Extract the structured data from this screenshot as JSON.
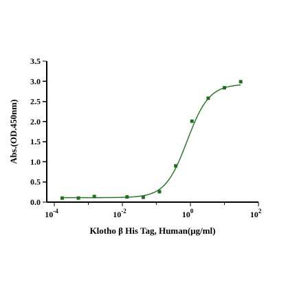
{
  "chart_data": {
    "type": "scatter",
    "title": "",
    "xlabel": "Klotho β His Tag, Human(μg/ml)",
    "ylabel": "Abs.(OD.450nm)",
    "xscale": "log",
    "xlim": [
      6e-05,
      100
    ],
    "ylim": [
      0,
      3.5
    ],
    "xticks": [
      {
        "value": 0.0001,
        "base": "10",
        "exp": "-4"
      },
      {
        "value": 0.01,
        "base": "10",
        "exp": "-2"
      },
      {
        "value": 1,
        "base": "10",
        "exp": "0"
      },
      {
        "value": 100,
        "base": "10",
        "exp": "2"
      }
    ],
    "yticks": [
      {
        "value": 0,
        "label": "0.0"
      },
      {
        "value": 0.5,
        "label": "0.5"
      },
      {
        "value": 1.0,
        "label": "1.0"
      },
      {
        "value": 1.5,
        "label": "1.5"
      },
      {
        "value": 2.0,
        "label": "2.0"
      },
      {
        "value": 2.5,
        "label": "2.5"
      },
      {
        "value": 3.0,
        "label": "3.0"
      },
      {
        "value": 3.5,
        "label": "3.5"
      }
    ],
    "grid": false,
    "legend": "none",
    "colors": {
      "points": "#1f6f1f",
      "fit": "#1f6f1f"
    },
    "series": [
      {
        "type": "points",
        "x": [
          0.00017,
          0.00051,
          0.0015,
          0.0137,
          0.041,
          0.123,
          0.37,
          1.11,
          3.33,
          10,
          30
        ],
        "y": [
          0.1,
          0.1,
          0.14,
          0.13,
          0.12,
          0.26,
          0.9,
          2.01,
          2.58,
          2.84,
          2.99
        ]
      },
      {
        "type": "fit",
        "model": "4PL",
        "params": {
          "bottom": 0.11,
          "top": 2.93,
          "ec50": 0.8,
          "hill": 1.35
        }
      }
    ]
  }
}
